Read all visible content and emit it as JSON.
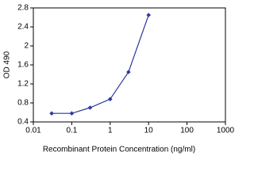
{
  "chart_data": {
    "type": "line",
    "x_label": "Recombinant Protein Concentration (ng/ml)",
    "y_label": "OD 490",
    "x": [
      0.03,
      0.1,
      0.3,
      1,
      3,
      10
    ],
    "series": [
      {
        "color": "#2e3a9c",
        "values": [
          0.58,
          0.58,
          0.7,
          0.88,
          1.45,
          2.65
        ]
      }
    ],
    "xscale": "log",
    "xlim": [
      0.01,
      1000
    ],
    "xticks": [
      0.01,
      0.1,
      1,
      10,
      100,
      1000
    ],
    "ylim": [
      0.4,
      2.8
    ],
    "yticks": [
      0.4,
      0.8,
      1.2,
      1.6,
      2,
      2.4,
      2.8
    ],
    "grid": false
  }
}
